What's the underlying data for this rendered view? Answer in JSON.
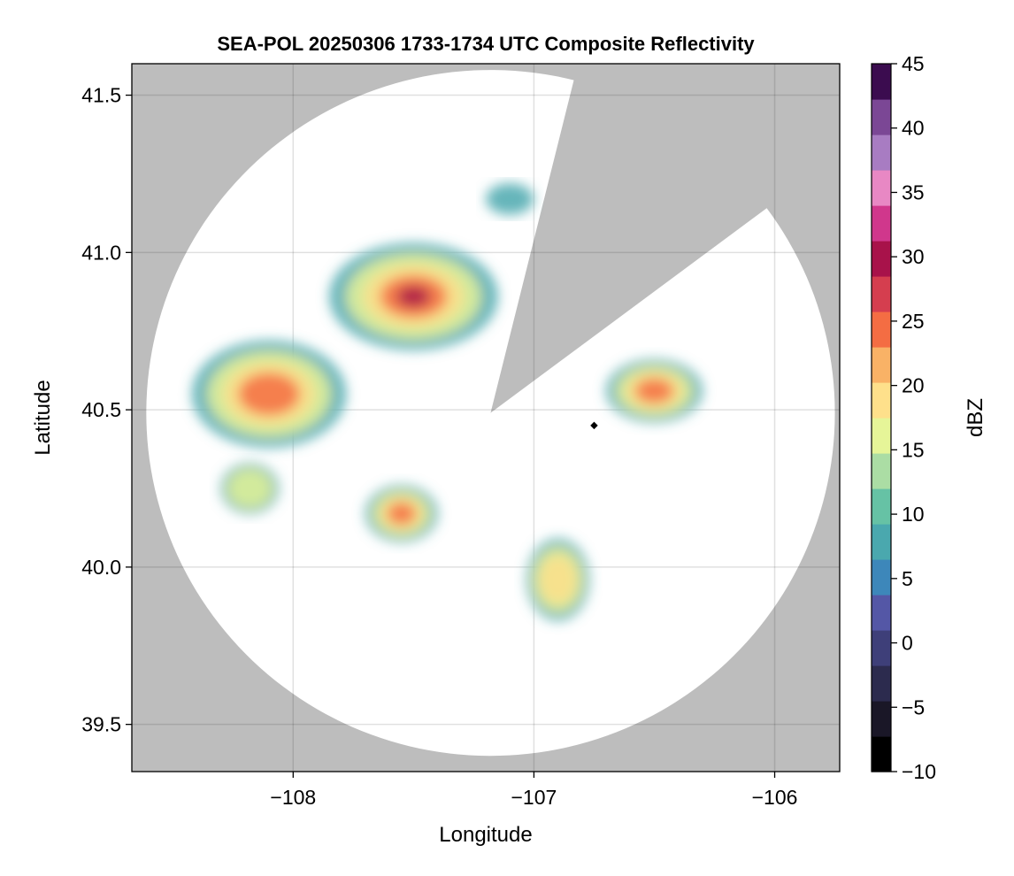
{
  "chart_data": {
    "type": "heatmap",
    "title": "SEA-POL 20250306 1733-1734 UTC Composite Reflectivity",
    "xlabel": "Longitude",
    "ylabel": "Latitude",
    "xlim": [
      -108.67,
      -105.73
    ],
    "ylim": [
      39.35,
      41.6
    ],
    "xticks": [
      -108,
      -107,
      -106
    ],
    "xtick_labels": [
      "−108",
      "−107",
      "−106"
    ],
    "yticks": [
      39.5,
      40.0,
      40.5,
      41.0,
      41.5
    ],
    "ytick_labels": [
      "39.5",
      "40.0",
      "40.5",
      "41.0",
      "41.5"
    ],
    "grid": true,
    "background": "#bdbdbd",
    "coverage": {
      "center": [
        -107.18,
        40.49
      ],
      "max_range_deg_lon": 1.43,
      "max_range_deg_lat": 1.09,
      "blocked_sector": {
        "from_lon_lat": [
          -106.84,
          41.53
        ],
        "to_lon_lat": [
          -106.07,
          41.12
        ]
      }
    },
    "marker": {
      "lon": -106.75,
      "lat": 40.45,
      "color": "#000000"
    },
    "colorbar": {
      "label": "dBZ",
      "range": [
        -10,
        45
      ],
      "ticks": [
        -10,
        -5,
        0,
        5,
        10,
        15,
        20,
        25,
        30,
        35,
        40,
        45
      ],
      "tick_labels": [
        "−10",
        "−5",
        "0",
        "5",
        "10",
        "15",
        "20",
        "25",
        "30",
        "35",
        "40",
        "45"
      ],
      "colors": [
        "#000000",
        "#1a1727",
        "#2c2b4e",
        "#3e3f79",
        "#5457a6",
        "#3d87ba",
        "#4aa8ae",
        "#66c2a5",
        "#abdda4",
        "#e6f598",
        "#fee08b",
        "#f9b266",
        "#f46d43",
        "#d53e4f",
        "#a8124a",
        "#d0378c",
        "#e888c4",
        "#a87cc2",
        "#7b4795",
        "#3b0c4f"
      ]
    },
    "echo_cells": [
      {
        "center": [
          -107.5,
          40.86
        ],
        "extent": [
          0.35,
          0.17
        ],
        "peak_dbz": 30
      },
      {
        "center": [
          -108.1,
          40.55
        ],
        "extent": [
          0.32,
          0.17
        ],
        "peak_dbz": 28
      },
      {
        "center": [
          -106.5,
          40.56
        ],
        "extent": [
          0.2,
          0.1
        ],
        "peak_dbz": 28
      },
      {
        "center": [
          -107.55,
          40.17
        ],
        "extent": [
          0.15,
          0.09
        ],
        "peak_dbz": 27
      },
      {
        "center": [
          -106.9,
          39.96
        ],
        "extent": [
          0.13,
          0.13
        ],
        "peak_dbz": 21
      },
      {
        "center": [
          -108.18,
          40.25
        ],
        "extent": [
          0.12,
          0.08
        ],
        "peak_dbz": 17
      },
      {
        "center": [
          -107.1,
          41.17
        ],
        "extent": [
          0.1,
          0.05
        ],
        "peak_dbz": 13
      }
    ]
  }
}
